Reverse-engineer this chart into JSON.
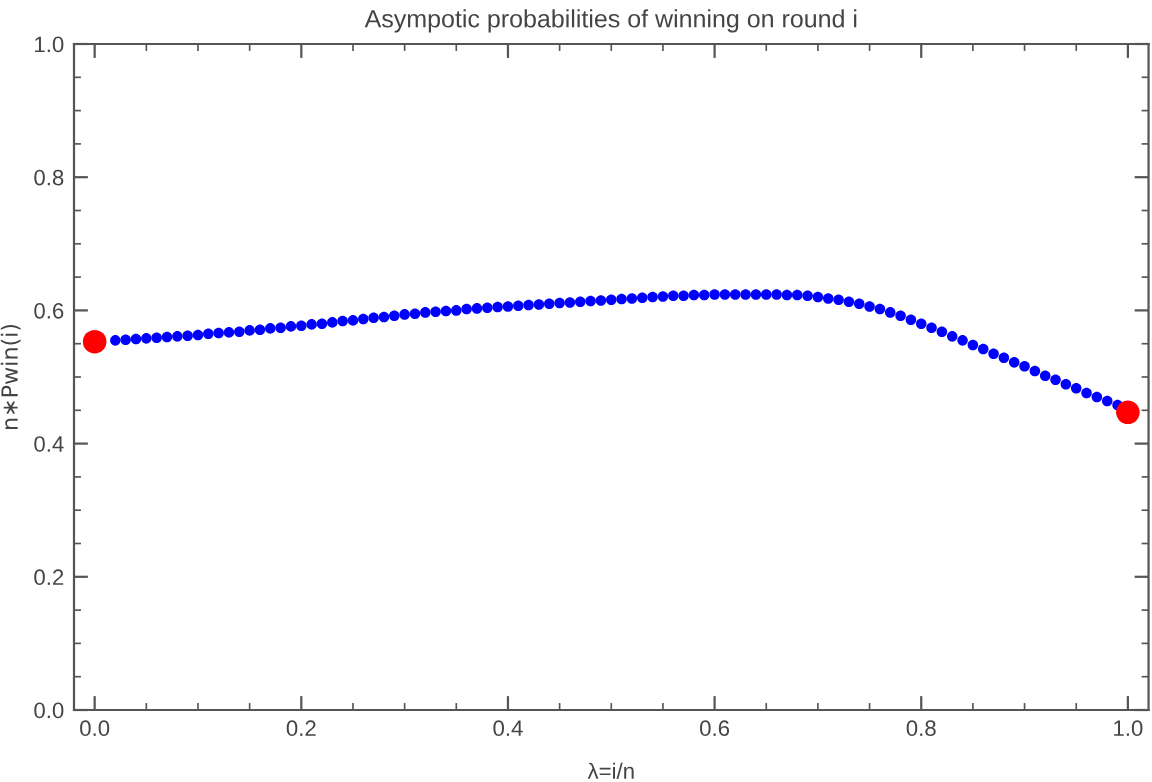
{
  "chart_data": {
    "type": "scatter",
    "title": "Asympotic probabilities of winning on round i",
    "xlabel": "λ=i/n",
    "ylabel": "n∗Pwin(i)",
    "xlim": [
      -0.02,
      1.02
    ],
    "ylim": [
      0,
      1
    ],
    "xticks": [
      {
        "value": 0,
        "label": "0.0"
      },
      0.2,
      0.4,
      0.6,
      0.8,
      {
        "value": 1,
        "label": "1.0"
      }
    ],
    "yticks": [
      {
        "value": 0,
        "label": "0.0"
      },
      0.2,
      0.4,
      0.6,
      0.8,
      {
        "value": 1,
        "label": "1.0"
      }
    ],
    "grid": false,
    "legend": false,
    "marker": "circle",
    "series": [
      {
        "color": "#0000ff",
        "x": [
          0.02,
          0.03,
          0.04,
          0.05,
          0.06,
          0.07,
          0.08,
          0.09,
          0.1,
          0.11,
          0.12,
          0.13,
          0.14,
          0.15,
          0.16,
          0.17,
          0.18,
          0.19,
          0.2,
          0.21,
          0.22,
          0.23,
          0.24,
          0.25,
          0.26,
          0.27,
          0.28,
          0.29,
          0.3,
          0.31,
          0.32,
          0.33,
          0.34,
          0.35,
          0.36,
          0.37,
          0.38,
          0.39,
          0.4,
          0.41,
          0.42,
          0.43,
          0.44,
          0.45,
          0.46,
          0.47,
          0.48,
          0.49,
          0.5,
          0.51,
          0.52,
          0.53,
          0.54,
          0.55,
          0.56,
          0.57,
          0.58,
          0.59,
          0.6,
          0.61,
          0.62,
          0.63,
          0.64,
          0.65,
          0.66,
          0.67,
          0.68,
          0.69,
          0.7,
          0.71,
          0.72,
          0.73,
          0.74,
          0.75,
          0.76,
          0.77,
          0.78,
          0.79,
          0.8,
          0.81,
          0.82,
          0.83,
          0.84,
          0.85,
          0.86,
          0.87,
          0.88,
          0.89,
          0.9,
          0.91,
          0.92,
          0.93,
          0.94,
          0.95,
          0.96,
          0.97,
          0.98,
          0.99
        ],
        "values": [
          0.555,
          0.556,
          0.557,
          0.558,
          0.559,
          0.56,
          0.561,
          0.562,
          0.563,
          0.565,
          0.566,
          0.567,
          0.568,
          0.57,
          0.571,
          0.573,
          0.574,
          0.576,
          0.577,
          0.579,
          0.58,
          0.582,
          0.584,
          0.585,
          0.587,
          0.589,
          0.59,
          0.592,
          0.594,
          0.595,
          0.597,
          0.598,
          0.599,
          0.6,
          0.602,
          0.603,
          0.604,
          0.605,
          0.606,
          0.607,
          0.608,
          0.609,
          0.61,
          0.611,
          0.612,
          0.613,
          0.614,
          0.615,
          0.616,
          0.617,
          0.618,
          0.619,
          0.62,
          0.621,
          0.622,
          0.622,
          0.623,
          0.623,
          0.624,
          0.624,
          0.624,
          0.624,
          0.624,
          0.624,
          0.624,
          0.623,
          0.623,
          0.622,
          0.62,
          0.618,
          0.616,
          0.613,
          0.61,
          0.606,
          0.602,
          0.597,
          0.592,
          0.586,
          0.58,
          0.574,
          0.568,
          0.561,
          0.555,
          0.548,
          0.542,
          0.535,
          0.529,
          0.522,
          0.516,
          0.509,
          0.502,
          0.496,
          0.489,
          0.483,
          0.476,
          0.47,
          0.464,
          0.458
        ]
      },
      {
        "color": "#ff0000",
        "x": [
          0,
          1
        ],
        "values": [
          0.553,
          0.447
        ]
      }
    ]
  }
}
